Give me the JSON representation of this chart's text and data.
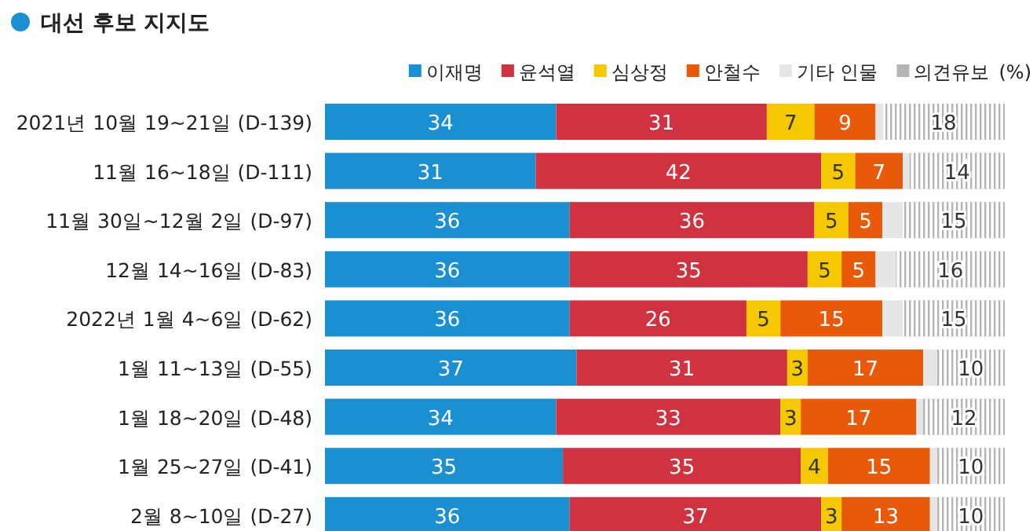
{
  "chart_data": {
    "type": "bar",
    "orientation": "horizontal",
    "stacked": true,
    "title": "대선 후보 지지도",
    "legend_title": "(%)",
    "legend": "top",
    "categories": [
      "2021년 10월 19~21일 (D-139)",
      "11월 16~18일 (D-111)",
      "11월 30일~12월 2일 (D-97)",
      "12월 14~16일 (D-83)",
      "2022년 1월 4~6일 (D-62)",
      "1월 11~13일 (D-55)",
      "1월 18~20일 (D-48)",
      "1월 25~27일 (D-41)",
      "2월 8~10일 (D-27)"
    ],
    "series": [
      {
        "name": "이재명",
        "color": "#1a8fd1",
        "values": [
          34,
          31,
          36,
          36,
          36,
          37,
          34,
          35,
          36
        ],
        "value_labels": [
          "34",
          "31",
          "36",
          "36",
          "36",
          "37",
          "34",
          "35",
          "36"
        ]
      },
      {
        "name": "윤석열",
        "color": "#d0323f",
        "values": [
          31,
          42,
          36,
          35,
          26,
          31,
          33,
          35,
          37
        ],
        "value_labels": [
          "31",
          "42",
          "36",
          "35",
          "26",
          "31",
          "33",
          "35",
          "37"
        ]
      },
      {
        "name": "심상정",
        "color": "#f5c800",
        "values": [
          7,
          5,
          5,
          5,
          5,
          3,
          3,
          4,
          3
        ],
        "value_labels": [
          "7",
          "5",
          "5",
          "5",
          "5",
          "3",
          "3",
          "4",
          "3"
        ]
      },
      {
        "name": "안철수",
        "color": "#e85a0a",
        "values": [
          9,
          7,
          5,
          5,
          15,
          17,
          17,
          15,
          13
        ],
        "value_labels": [
          "9",
          "7",
          "5",
          "5",
          "15",
          "17",
          "17",
          "15",
          "13"
        ]
      },
      {
        "name": "기타 인물",
        "color": "#e6e6e6",
        "values": [
          1,
          1,
          3,
          3,
          3,
          2,
          1,
          1,
          1
        ]
      },
      {
        "name": "의견유보",
        "color": "#b4b4b4",
        "values": [
          18,
          14,
          15,
          16,
          15,
          10,
          12,
          10,
          10
        ],
        "value_labels": [
          "18",
          "14",
          "15",
          "16",
          "15",
          "10",
          "12",
          "10",
          "10"
        ]
      }
    ]
  }
}
